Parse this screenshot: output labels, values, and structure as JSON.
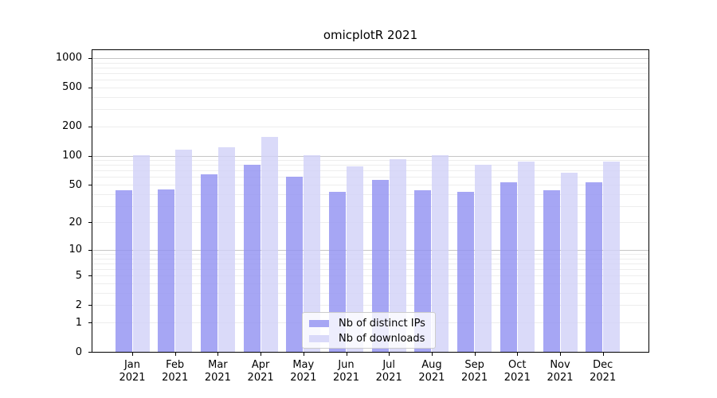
{
  "chart_data": {
    "type": "bar",
    "title": "omicplotR 2021",
    "categories": [
      "Jan",
      "Feb",
      "Mar",
      "Apr",
      "May",
      "Jun",
      "Jul",
      "Aug",
      "Sep",
      "Oct",
      "Nov",
      "Dec"
    ],
    "year_label": "2021",
    "series": [
      {
        "name": "Nb of distinct IPs",
        "color": "rgba(144,144,241,0.8)",
        "values": [
          44,
          45,
          64,
          81,
          60,
          42,
          56,
          44,
          42,
          53,
          44,
          53
        ]
      },
      {
        "name": "Nb of downloads",
        "color": "rgba(209,209,247,0.8)",
        "values": [
          101,
          116,
          122,
          157,
          101,
          78,
          92,
          101,
          80,
          86,
          66,
          86
        ]
      }
    ],
    "yaxis": {
      "scale": "log1p",
      "ylim": [
        0,
        1000
      ],
      "ticks": [
        1000,
        500,
        200,
        100,
        50,
        20,
        10,
        5,
        2,
        1,
        0
      ],
      "gridlines_minor": [
        1,
        2,
        3,
        4,
        5,
        6,
        7,
        8,
        9,
        20,
        30,
        40,
        50,
        60,
        70,
        80,
        90,
        200,
        300,
        400,
        500,
        600,
        700,
        800,
        900
      ],
      "gridlines_major": [
        10,
        100,
        1000
      ]
    },
    "legend": {
      "position": "inside-bottom-center",
      "labels": [
        "Nb of distinct IPs",
        "Nb of downloads"
      ]
    },
    "grid": true
  },
  "colors": {
    "background": "#ffffff",
    "spine": "#000000",
    "grid_minor": "#ededed",
    "grid_major": "#c6c6c6",
    "text": "#000000",
    "legend_border": "#cccccc",
    "legend_bg": "rgba(255,255,255,0.8)"
  }
}
